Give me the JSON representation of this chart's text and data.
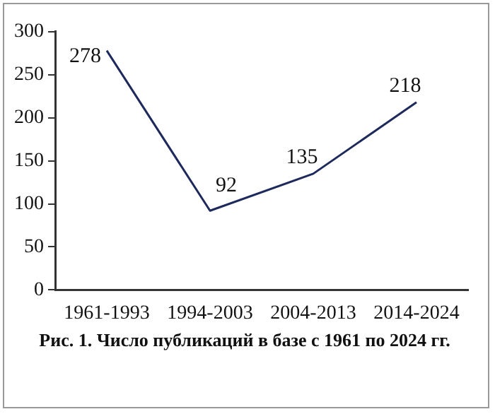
{
  "chart_data": {
    "type": "line",
    "categories": [
      "1961-1993",
      "1994-2003",
      "2004-2013",
      "2014-2024"
    ],
    "series": [
      {
        "color": "#1f2a5c",
        "values": [
          278,
          92,
          135,
          218
        ]
      }
    ],
    "ylim": [
      0,
      300
    ],
    "yticks": [
      0,
      50,
      100,
      150,
      200,
      250,
      300
    ],
    "grid": false,
    "legend": false,
    "marker": "none",
    "line_style": "solid",
    "data_labels": true,
    "annotations": [
      "Рис. 1. Число публикаций в базе с 1961 по 2024 гг."
    ]
  }
}
